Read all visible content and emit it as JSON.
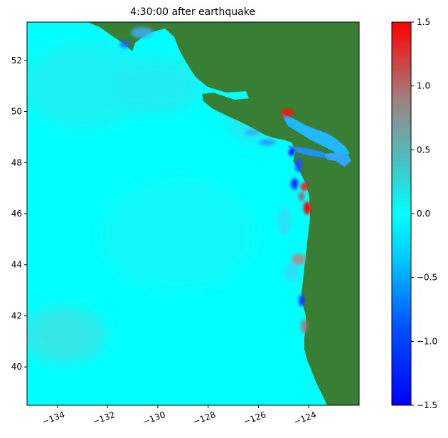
{
  "chart_data": {
    "type": "heatmap",
    "title": "4:30:00 after earthquake",
    "xlim": [
      -135.2,
      -122.0
    ],
    "ylim": [
      38.5,
      53.5
    ],
    "x_ticks": [
      -134,
      -132,
      -130,
      -128,
      -126,
      -124
    ],
    "x_tick_labels": [
      "−134",
      "−132",
      "−130",
      "−128",
      "−126",
      "−124"
    ],
    "y_ticks": [
      40,
      42,
      44,
      46,
      48,
      50,
      52
    ],
    "y_tick_labels": [
      "40",
      "42",
      "44",
      "46",
      "48",
      "50",
      "52"
    ],
    "colorbar": {
      "range": [
        -1.5,
        1.5
      ],
      "ticks": [
        -1.5,
        -1.0,
        -0.5,
        0.0,
        0.5,
        1.0,
        1.5
      ],
      "tick_labels": [
        "−1.5",
        "−1.0",
        "−0.5",
        "0.0",
        "0.5",
        "1.0",
        "1.5"
      ],
      "colors": [
        "#0000ff",
        "#00ffff",
        "#ff0000"
      ]
    },
    "land_color": "#387f35",
    "ocean_color": "#00ffff"
  }
}
